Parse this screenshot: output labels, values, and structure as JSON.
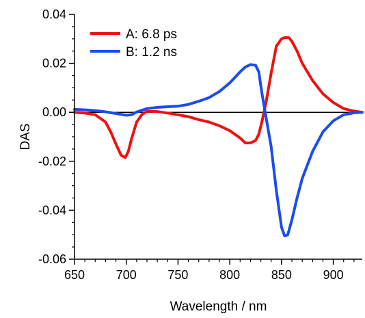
{
  "chart_data": {
    "type": "line",
    "xlabel": "Wavelength / nm",
    "ylabel": "DAS",
    "xlim": [
      650,
      928
    ],
    "ylim": [
      -0.06,
      0.04
    ],
    "xticks": [
      650,
      700,
      750,
      800,
      850,
      900
    ],
    "xtick_labels": [
      "650",
      "700",
      "750",
      "800",
      "850",
      "900"
    ],
    "yticks": [
      -0.06,
      -0.04,
      -0.02,
      0.0,
      0.02,
      0.04
    ],
    "ytick_labels": [
      "-0.06",
      "-0.04",
      "-0.02",
      "0.00",
      "0.02",
      "0.04"
    ],
    "zero_line": true,
    "grid": false,
    "legend_position": "top-left",
    "series": [
      {
        "name": "A: 6.8 ps",
        "color": "#ee1111",
        "x": [
          650,
          660,
          670,
          680,
          685,
          690,
          695,
          699,
          702,
          705,
          710,
          715,
          720,
          730,
          740,
          750,
          760,
          770,
          780,
          790,
          800,
          810,
          815,
          820,
          825,
          828,
          831,
          835,
          840,
          845,
          850,
          853,
          857,
          860,
          865,
          870,
          880,
          890,
          900,
          910,
          920,
          928
        ],
        "y": [
          0.0,
          -0.0003,
          -0.001,
          -0.004,
          -0.008,
          -0.013,
          -0.0175,
          -0.0185,
          -0.016,
          -0.011,
          -0.004,
          -0.001,
          0.0004,
          0.0003,
          -0.0003,
          -0.001,
          -0.0018,
          -0.003,
          -0.004,
          -0.0055,
          -0.0075,
          -0.0105,
          -0.0125,
          -0.0125,
          -0.0115,
          -0.009,
          -0.004,
          0.004,
          0.016,
          0.027,
          0.03,
          0.0305,
          0.0305,
          0.029,
          0.025,
          0.02,
          0.013,
          0.0075,
          0.004,
          0.0015,
          0.0005,
          0.0
        ]
      },
      {
        "name": "B: 1.2 ns",
        "color": "#1a4cee",
        "x": [
          650,
          660,
          670,
          680,
          690,
          700,
          705,
          710,
          720,
          730,
          740,
          750,
          760,
          770,
          780,
          790,
          800,
          810,
          815,
          820,
          825,
          828,
          831,
          835,
          840,
          845,
          850,
          853,
          856,
          860,
          865,
          870,
          880,
          890,
          900,
          910,
          920,
          928
        ],
        "y": [
          0.0012,
          0.001,
          0.0007,
          0.0002,
          -0.0005,
          -0.0012,
          -0.001,
          0.0001,
          0.0015,
          0.002,
          0.0023,
          0.0025,
          0.0032,
          0.0045,
          0.006,
          0.0085,
          0.012,
          0.0165,
          0.0185,
          0.0195,
          0.0192,
          0.0165,
          0.008,
          -0.002,
          -0.014,
          -0.032,
          -0.047,
          -0.0505,
          -0.05,
          -0.044,
          -0.035,
          -0.027,
          -0.016,
          -0.008,
          -0.0035,
          -0.001,
          -0.0002,
          0.0
        ]
      }
    ]
  }
}
